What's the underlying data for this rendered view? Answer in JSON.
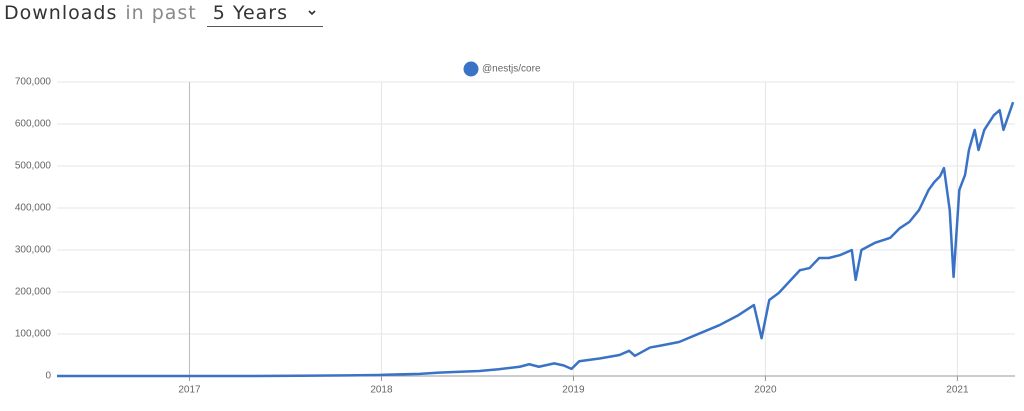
{
  "header": {
    "title": "Downloads",
    "subtitle": "in past",
    "period": "5 Years"
  },
  "chart_data": {
    "type": "line",
    "x": [
      2016.31,
      2017.31,
      2017.57,
      2017.83,
      2017.99,
      2018.09,
      2018.2,
      2018.3,
      2018.41,
      2018.51,
      2018.61,
      2018.72,
      2018.77,
      2018.82,
      2018.9,
      2018.95,
      2018.99,
      2019.03,
      2019.14,
      2019.24,
      2019.29,
      2019.32,
      2019.4,
      2019.45,
      2019.55,
      2019.66,
      2019.76,
      2019.86,
      2019.94,
      2019.97,
      2019.98,
      2020.02,
      2020.07,
      2020.18,
      2020.23,
      2020.28,
      2020.33,
      2020.39,
      2020.45,
      2020.47,
      2020.5,
      2020.57,
      2020.65,
      2020.7,
      2020.75,
      2020.8,
      2020.85,
      2020.88,
      2020.91,
      2020.93,
      2020.96,
      2020.98,
      2021.01,
      2021.04,
      2021.06,
      2021.09,
      2021.11,
      2021.14,
      2021.19,
      2021.22,
      2021.24,
      2021.29
    ],
    "series": [
      {
        "name": "@nestjs/core",
        "color": "#3a73c6",
        "values": [
          0,
          0,
          500,
          1500,
          2500,
          4000,
          5000,
          8000,
          10000,
          12000,
          16000,
          22000,
          28000,
          22000,
          30000,
          25000,
          17000,
          35000,
          42000,
          50000,
          60000,
          48000,
          68000,
          72000,
          81000,
          102000,
          121000,
          145000,
          169000,
          110000,
          90000,
          181000,
          198000,
          252000,
          257000,
          281000,
          281000,
          288000,
          300000,
          229000,
          300000,
          317000,
          329000,
          352000,
          367000,
          395000,
          443000,
          462000,
          476000,
          495000,
          395000,
          236000,
          443000,
          479000,
          538000,
          586000,
          538000,
          586000,
          621000,
          633000,
          586000,
          652000
        ]
      }
    ],
    "xlim": [
      2016.31,
      2021.3
    ],
    "xticks": [
      2017,
      2018,
      2019,
      2020,
      2021
    ],
    "ylim": [
      0,
      700000
    ],
    "yticks": [
      0,
      {
        "value": 100000,
        "label": "100,000"
      },
      {
        "value": 200000,
        "label": "200,000"
      },
      {
        "value": 300000,
        "label": "300,000"
      },
      {
        "value": 400000,
        "label": "400,000"
      },
      {
        "value": 500000,
        "label": "500,000"
      },
      {
        "value": 600000,
        "label": "600,000"
      },
      {
        "value": 700000,
        "label": "700,000"
      }
    ],
    "grid": true
  }
}
